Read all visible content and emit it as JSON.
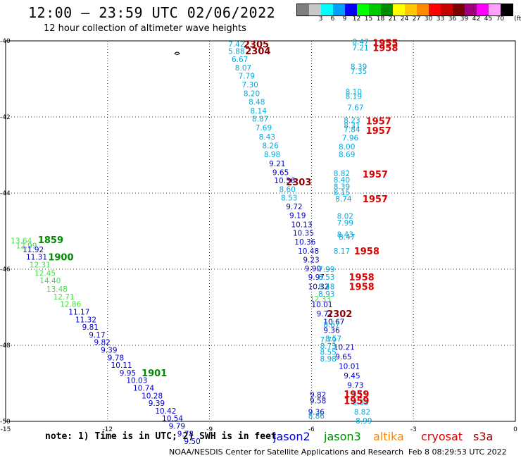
{
  "header": {
    "title": "12:00 – 23:59 UTC 02/06/2022",
    "subtitle": "12 hour collection of altimeter wave heights"
  },
  "colorbar": {
    "unit": "(ft)",
    "swatches": [
      {
        "color": "#7f7f7f",
        "label": ""
      },
      {
        "color": "#c8c8c8",
        "label": "3"
      },
      {
        "color": "#00ffff",
        "label": "6"
      },
      {
        "color": "#00a0ff",
        "label": "9"
      },
      {
        "color": "#0000ff",
        "label": "12"
      },
      {
        "color": "#00ff00",
        "label": "15"
      },
      {
        "color": "#00c800",
        "label": "18"
      },
      {
        "color": "#008c00",
        "label": "21"
      },
      {
        "color": "#ffff00",
        "label": "24"
      },
      {
        "color": "#ffc800",
        "label": "27"
      },
      {
        "color": "#ff8c00",
        "label": "30"
      },
      {
        "color": "#ff0000",
        "label": "33"
      },
      {
        "color": "#c80000",
        "label": "36"
      },
      {
        "color": "#780000",
        "label": "39"
      },
      {
        "color": "#a0007d",
        "label": "42"
      },
      {
        "color": "#ff00ff",
        "label": "45"
      },
      {
        "color": "#ffa0ff",
        "label": "70"
      },
      {
        "color": "#000000",
        "label": ""
      }
    ]
  },
  "axes": {
    "lon_ticks": [
      -15,
      -12,
      -9,
      -6,
      -3,
      0
    ],
    "lat_ticks": [
      -40,
      -42,
      -44,
      -46,
      -48,
      -50
    ],
    "lon_range": [
      -15,
      0
    ],
    "lat_range": [
      -50,
      -40
    ]
  },
  "colors": {
    "jason2": "#0000cc",
    "jason3": "#008800",
    "altika": "#ff8800",
    "cryosat": "#dd0000",
    "s3a": "#880000",
    "cyan": "#00aadd",
    "lightgreen": "#44dd44"
  },
  "chart_data": {
    "type": "scatter",
    "xlabel": "",
    "ylabel": "",
    "xlim": [
      -15,
      0
    ],
    "ylim": [
      -50,
      -40
    ],
    "grid": true,
    "labels": [
      {
        "text": "7.42",
        "lon": -8.45,
        "lat": -40.08,
        "c": "cyan"
      },
      {
        "text": "5.88",
        "lon": -8.45,
        "lat": -40.27,
        "c": "cyan"
      },
      {
        "text": "6.67",
        "lon": -8.35,
        "lat": -40.48,
        "c": "cyan"
      },
      {
        "text": "8.07",
        "lon": -8.25,
        "lat": -40.7,
        "c": "cyan"
      },
      {
        "text": "7.79",
        "lon": -8.15,
        "lat": -40.92,
        "c": "cyan"
      },
      {
        "text": "7.30",
        "lon": -8.05,
        "lat": -41.15,
        "c": "cyan"
      },
      {
        "text": "8.20",
        "lon": -8.0,
        "lat": -41.38,
        "c": "cyan"
      },
      {
        "text": "8.48",
        "lon": -7.85,
        "lat": -41.6,
        "c": "cyan"
      },
      {
        "text": "8.14",
        "lon": -7.8,
        "lat": -41.83,
        "c": "cyan"
      },
      {
        "text": "8.87",
        "lon": -7.75,
        "lat": -42.05,
        "c": "cyan"
      },
      {
        "text": "7.69",
        "lon": -7.65,
        "lat": -42.28,
        "c": "cyan"
      },
      {
        "text": "8.43",
        "lon": -7.55,
        "lat": -42.52,
        "c": "cyan"
      },
      {
        "text": "8.26",
        "lon": -7.45,
        "lat": -42.75,
        "c": "cyan"
      },
      {
        "text": "8.98",
        "lon": -7.4,
        "lat": -42.98,
        "c": "cyan"
      },
      {
        "text": "9.21",
        "lon": -7.25,
        "lat": -43.22,
        "c": "jason2"
      },
      {
        "text": "9.65",
        "lon": -7.15,
        "lat": -43.45,
        "c": "jason2"
      },
      {
        "text": "10.36",
        "lon": -7.1,
        "lat": -43.67,
        "c": "jason2"
      },
      {
        "text": "8.60",
        "lon": -6.95,
        "lat": -43.9,
        "c": "cyan"
      },
      {
        "text": "8.53",
        "lon": -6.9,
        "lat": -44.12,
        "c": "cyan"
      },
      {
        "text": "9.72",
        "lon": -6.75,
        "lat": -44.35,
        "c": "jason2"
      },
      {
        "text": "9.19",
        "lon": -6.65,
        "lat": -44.58,
        "c": "jason2"
      },
      {
        "text": "10.13",
        "lon": -6.6,
        "lat": -44.82,
        "c": "jason2"
      },
      {
        "text": "10.35",
        "lon": -6.55,
        "lat": -45.05,
        "c": "jason2"
      },
      {
        "text": "10.36",
        "lon": -6.5,
        "lat": -45.28,
        "c": "jason2"
      },
      {
        "text": "10.48",
        "lon": -6.4,
        "lat": -45.52,
        "c": "jason2"
      },
      {
        "text": "9.23",
        "lon": -6.25,
        "lat": -45.75,
        "c": "jason2"
      },
      {
        "text": "9.90",
        "lon": -6.2,
        "lat": -45.98,
        "c": "jason2"
      },
      {
        "text": "9.97",
        "lon": -6.1,
        "lat": -46.2,
        "c": "jason2"
      },
      {
        "text": "10.32",
        "lon": -6.1,
        "lat": -46.45,
        "c": "jason2"
      },
      {
        "text": "10.01",
        "lon": -6.0,
        "lat": -46.93,
        "c": "jason2"
      },
      {
        "text": "9.77",
        "lon": -5.85,
        "lat": -47.17,
        "c": "jason2"
      },
      {
        "text": "9.36",
        "lon": -5.65,
        "lat": -47.6,
        "c": "jason2"
      },
      {
        "text": "10.67",
        "lon": -5.65,
        "lat": -47.38,
        "c": "jason2"
      },
      {
        "text": "10.21",
        "lon": -5.35,
        "lat": -48.05,
        "c": "jason2"
      },
      {
        "text": "9.65",
        "lon": -5.3,
        "lat": -48.3,
        "c": "jason2"
      },
      {
        "text": "10.01",
        "lon": -5.2,
        "lat": -48.55,
        "c": "jason2"
      },
      {
        "text": "9.45",
        "lon": -5.05,
        "lat": -48.8,
        "c": "jason2"
      },
      {
        "text": "9.73",
        "lon": -4.95,
        "lat": -49.05,
        "c": "jason2"
      },
      {
        "text": "8.35",
        "lon": -4.8,
        "lat": -49.5,
        "c": "cyan"
      },
      {
        "text": "8.82",
        "lon": -4.75,
        "lat": -49.75,
        "c": "cyan"
      },
      {
        "text": "8.99",
        "lon": -4.7,
        "lat": -49.98,
        "c": "cyan"
      },
      {
        "text": "7.33",
        "lon": -4.85,
        "lat": -49.3,
        "c": "cyan"
      },
      {
        "text": "9.82",
        "lon": -6.05,
        "lat": -49.3,
        "c": "jason2"
      },
      {
        "text": "9.58",
        "lon": -6.05,
        "lat": -49.45,
        "c": "jason2"
      },
      {
        "text": "9.36",
        "lon": -6.1,
        "lat": -49.75,
        "c": "jason2"
      },
      {
        "text": "8.86",
        "lon": -6.1,
        "lat": -49.85,
        "c": "cyan"
      },
      {
        "text": "7.79",
        "lon": -5.75,
        "lat": -47.85,
        "c": "cyan"
      },
      {
        "text": "8.57",
        "lon": -5.6,
        "lat": -47.82,
        "c": "cyan"
      },
      {
        "text": "8.73",
        "lon": -5.75,
        "lat": -48.02,
        "c": "cyan"
      },
      {
        "text": "8.55",
        "lon": -5.75,
        "lat": -48.18,
        "c": "cyan"
      },
      {
        "text": "8.98",
        "lon": -5.75,
        "lat": -48.35,
        "c": "cyan"
      },
      {
        "text": "8.67",
        "lon": -5.65,
        "lat": -47.45,
        "c": "cyan"
      },
      {
        "text": "7.99",
        "lon": -5.8,
        "lat": -46.0,
        "c": "cyan"
      },
      {
        "text": "8.53",
        "lon": -5.8,
        "lat": -46.2,
        "c": "cyan"
      },
      {
        "text": "8.48",
        "lon": -5.8,
        "lat": -46.45,
        "c": "cyan"
      },
      {
        "text": "8.93",
        "lon": -5.8,
        "lat": -46.65,
        "c": "cyan"
      },
      {
        "text": "12.33",
        "lon": -6.05,
        "lat": -46.78,
        "c": "lightgreen"
      },
      {
        "text": "8.17",
        "lon": -5.35,
        "lat": -45.52,
        "c": "cyan"
      },
      {
        "text": "8.43",
        "lon": -5.25,
        "lat": -45.08,
        "c": "cyan"
      },
      {
        "text": "8.47",
        "lon": -5.2,
        "lat": -45.15,
        "c": "cyan"
      },
      {
        "text": "8.02",
        "lon": -5.25,
        "lat": -44.6,
        "c": "cyan"
      },
      {
        "text": "7.99",
        "lon": -5.25,
        "lat": -44.78,
        "c": "cyan"
      },
      {
        "text": "8.74",
        "lon": -5.3,
        "lat": -44.15,
        "c": "cyan"
      },
      {
        "text": "8.15",
        "lon": -5.35,
        "lat": -43.98,
        "c": "cyan"
      },
      {
        "text": "8.39",
        "lon": -5.35,
        "lat": -43.82,
        "c": "cyan"
      },
      {
        "text": "8.40",
        "lon": -5.35,
        "lat": -43.65,
        "c": "cyan"
      },
      {
        "text": "8.82",
        "lon": -5.35,
        "lat": -43.48,
        "c": "cyan"
      },
      {
        "text": "8.69",
        "lon": -5.2,
        "lat": -42.98,
        "c": "cyan"
      },
      {
        "text": "8.00",
        "lon": -5.2,
        "lat": -42.78,
        "c": "cyan"
      },
      {
        "text": "7.96",
        "lon": -5.1,
        "lat": -42.55,
        "c": "cyan"
      },
      {
        "text": "7.84",
        "lon": -5.05,
        "lat": -42.32,
        "c": "cyan"
      },
      {
        "text": "8.31",
        "lon": -5.05,
        "lat": -42.22,
        "c": "cyan"
      },
      {
        "text": "8.23",
        "lon": -5.05,
        "lat": -42.08,
        "c": "cyan"
      },
      {
        "text": "7.67",
        "lon": -4.95,
        "lat": -41.75,
        "c": "cyan"
      },
      {
        "text": "8.19",
        "lon": -5.0,
        "lat": -41.45,
        "c": "cyan"
      },
      {
        "text": "8.10",
        "lon": -5.0,
        "lat": -41.33,
        "c": "cyan"
      },
      {
        "text": "7.35",
        "lon": -4.85,
        "lat": -40.8,
        "c": "cyan"
      },
      {
        "text": "8.39",
        "lon": -4.85,
        "lat": -40.68,
        "c": "cyan"
      },
      {
        "text": "7.21",
        "lon": -4.8,
        "lat": -40.18,
        "c": "cyan"
      },
      {
        "text": "8.47",
        "lon": -4.8,
        "lat": -40.02,
        "c": "cyan"
      },
      {
        "text": "13.64",
        "lon": -14.85,
        "lat": -45.25,
        "c": "lightgreen"
      },
      {
        "text": "12.99",
        "lon": -14.7,
        "lat": -45.38,
        "c": "lightgreen"
      },
      {
        "text": "11.92",
        "lon": -14.5,
        "lat": -45.48,
        "c": "jason2"
      },
      {
        "text": "11.31",
        "lon": -14.4,
        "lat": -45.68,
        "c": "jason2"
      },
      {
        "text": "12.31",
        "lon": -14.3,
        "lat": -45.88,
        "c": "lightgreen"
      },
      {
        "text": "12.45",
        "lon": -14.15,
        "lat": -46.1,
        "c": "lightgreen"
      },
      {
        "text": "14.40",
        "lon": -14.0,
        "lat": -46.3,
        "c": "lightgreen"
      },
      {
        "text": "13.48",
        "lon": -13.8,
        "lat": -46.52,
        "c": "lightgreen"
      },
      {
        "text": "12.71",
        "lon": -13.6,
        "lat": -46.72,
        "c": "lightgreen"
      },
      {
        "text": "12.86",
        "lon": -13.4,
        "lat": -46.92,
        "c": "lightgreen"
      },
      {
        "text": "11.17",
        "lon": -13.15,
        "lat": -47.12,
        "c": "jason2"
      },
      {
        "text": "11.32",
        "lon": -12.95,
        "lat": -47.32,
        "c": "jason2"
      },
      {
        "text": "9.81",
        "lon": -12.75,
        "lat": -47.52,
        "c": "jason2"
      },
      {
        "text": "9.17",
        "lon": -12.55,
        "lat": -47.72,
        "c": "jason2"
      },
      {
        "text": "9.82",
        "lon": -12.4,
        "lat": -47.92,
        "c": "jason2"
      },
      {
        "text": "9.39",
        "lon": -12.2,
        "lat": -48.12,
        "c": "jason2"
      },
      {
        "text": "9.78",
        "lon": -12.0,
        "lat": -48.32,
        "c": "jason2"
      },
      {
        "text": "10.11",
        "lon": -11.9,
        "lat": -48.52,
        "c": "jason2"
      },
      {
        "text": "9.95",
        "lon": -11.65,
        "lat": -48.72,
        "c": "jason2"
      },
      {
        "text": "10.03",
        "lon": -11.45,
        "lat": -48.92,
        "c": "jason2"
      },
      {
        "text": "10.74",
        "lon": -11.25,
        "lat": -49.12,
        "c": "jason2"
      },
      {
        "text": "10.28",
        "lon": -11.0,
        "lat": -49.32,
        "c": "jason2"
      },
      {
        "text": "9.39",
        "lon": -10.8,
        "lat": -49.52,
        "c": "jason2"
      },
      {
        "text": "10.42",
        "lon": -10.6,
        "lat": -49.72,
        "c": "jason2"
      },
      {
        "text": "10.54",
        "lon": -10.4,
        "lat": -49.92,
        "c": "jason2"
      },
      {
        "text": "9.79",
        "lon": -10.2,
        "lat": -50.12,
        "c": "jason2"
      },
      {
        "text": "9.78",
        "lon": -9.95,
        "lat": -50.32,
        "c": "jason2"
      },
      {
        "text": "9.50",
        "lon": -9.75,
        "lat": -50.52,
        "c": "jason2"
      }
    ],
    "time_labels": [
      {
        "text": "2305",
        "lon": -8.0,
        "lat": -40.08,
        "c": "s3a"
      },
      {
        "text": "2304",
        "lon": -7.95,
        "lat": -40.26,
        "c": "s3a"
      },
      {
        "text": "2303",
        "lon": -6.75,
        "lat": -43.7,
        "c": "s3a"
      },
      {
        "text": "2302",
        "lon": -5.55,
        "lat": -47.17,
        "c": "s3a"
      },
      {
        "text": "1955",
        "lon": -4.2,
        "lat": -40.05,
        "c": "cryosat"
      },
      {
        "text": "1958",
        "lon": -4.2,
        "lat": -40.18,
        "c": "cryosat"
      },
      {
        "text": "1957",
        "lon": -4.4,
        "lat": -42.1,
        "c": "cryosat"
      },
      {
        "text": "1957",
        "lon": -4.4,
        "lat": -42.35,
        "c": "cryosat"
      },
      {
        "text": "1957",
        "lon": -4.5,
        "lat": -43.5,
        "c": "cryosat"
      },
      {
        "text": "1957",
        "lon": -4.5,
        "lat": -44.15,
        "c": "cryosat"
      },
      {
        "text": "1958",
        "lon": -4.75,
        "lat": -45.52,
        "c": "cryosat"
      },
      {
        "text": "1958",
        "lon": -4.9,
        "lat": -46.2,
        "c": "cryosat"
      },
      {
        "text": "1958",
        "lon": -4.9,
        "lat": -46.45,
        "c": "cryosat"
      },
      {
        "text": "1959",
        "lon": -5.05,
        "lat": -49.28,
        "c": "cryosat"
      },
      {
        "text": "1959",
        "lon": -5.05,
        "lat": -49.45,
        "c": "cryosat"
      },
      {
        "text": "1859",
        "lon": -14.05,
        "lat": -45.22,
        "c": "jason3"
      },
      {
        "text": "1900",
        "lon": -13.75,
        "lat": -45.68,
        "c": "jason3"
      },
      {
        "text": "1901",
        "lon": -11.0,
        "lat": -48.72,
        "c": "jason3"
      }
    ]
  },
  "footer": {
    "note": "note: 1) Time is in UTC; 2) SWH is in feet",
    "legend": [
      {
        "name": "jason2",
        "c": "jason2"
      },
      {
        "name": "jason3",
        "c": "jason3"
      },
      {
        "name": "altika",
        "c": "altika"
      },
      {
        "name": "cryosat",
        "c": "cryosat"
      },
      {
        "name": "s3a",
        "c": "s3a"
      }
    ],
    "credit": "NOAA/NESDIS Center for Satellite Applications and Research",
    "timestamp": "Feb  8 08:29:53 UTC 2022"
  }
}
